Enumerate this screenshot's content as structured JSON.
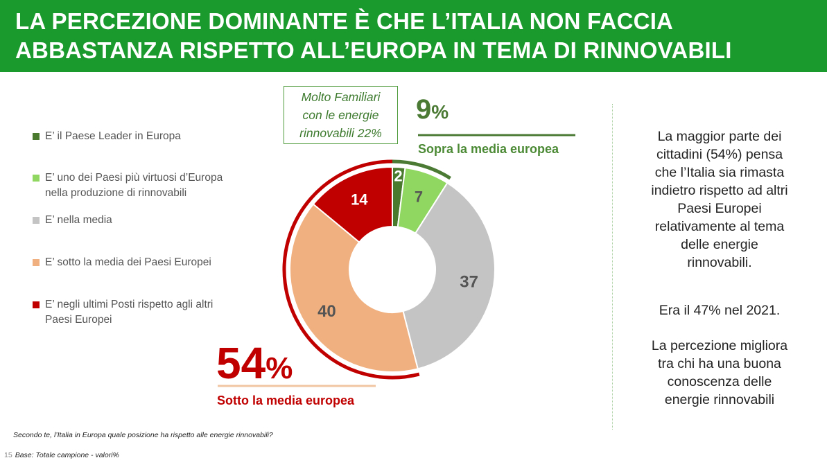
{
  "header": {
    "title_line1": "LA PERCEZIONE DOMINANTE È CHE L’ITALIA NON FACCIA",
    "title_line2": "ABBASTANZA RISPETTO ALL’EUROPA IN TEMA DI RINNOVABILI",
    "background": "#1a9a2c"
  },
  "chart_data": {
    "type": "pie",
    "variant": "donut",
    "categories": [
      "E’ il Paese Leader in Europa",
      "E’ uno dei Paesi più virtuosi d’Europa nella produzione di rinnovabili",
      "E’ nella media",
      "E’ sotto la media dei Paesi Europei",
      "E’ negli ultimi Posti rispetto agli altri Paesi Europei"
    ],
    "values": [
      2,
      7,
      37,
      40,
      14
    ],
    "colors": [
      "#4a7a2e",
      "#8fd760",
      "#c4c4c4",
      "#f1b07f",
      "#c00000"
    ],
    "label_colors": [
      "#ffffff",
      "#555555",
      "#555555",
      "#555555",
      "#ffffff"
    ],
    "legend_placement": "left"
  },
  "legend": {
    "items": [
      {
        "line1": "E’ il Paese Leader in Europa",
        "line2": "",
        "color": "#4a7a2e"
      },
      {
        "line1": "E’ uno dei Paesi più virtuosi d’Europa",
        "line2": "nella produzione di rinnovabili",
        "color": "#8fd760"
      },
      {
        "line1": "E’ nella media",
        "line2": "",
        "color": "#c4c4c4"
      },
      {
        "line1": "E’ sotto la media dei Paesi Europei",
        "line2": "",
        "color": "#f1b07f"
      },
      {
        "line1": "E’ negli ultimi Posti rispetto agli altri",
        "line2": "Paesi Europei",
        "color": "#c00000"
      }
    ]
  },
  "callout": {
    "line1": "Molto Familiari",
    "line2": "con le energie",
    "line3": "rinnovabili 22%"
  },
  "above_average": {
    "value": "9",
    "symbol": "%",
    "label": "Sopra la media europea",
    "color": "#4a7a33"
  },
  "below_average": {
    "value": "54",
    "symbol": "%",
    "label": "Sotto la media europea",
    "color": "#c00000"
  },
  "side_panel": {
    "para1": [
      "La maggior parte dei",
      "cittadini (54%) pensa",
      "che l’Italia sia rimasta",
      "indietro rispetto ad altri",
      "Paesi Europei",
      "relativamente al tema",
      "delle energie",
      "rinnovabili."
    ],
    "para2": "Era il 47% nel 2021.",
    "para3": [
      "La percezione migliora",
      "tra chi ha una buona",
      "conoscenza delle",
      "energie rinnovabili"
    ]
  },
  "footnotes": {
    "question": "Secondo te, l’Italia in Europa quale posizione ha rispetto alle energie rinnovabili?",
    "page_number": "15",
    "base": "Base: Totale campione",
    "unit": "- valori%"
  }
}
